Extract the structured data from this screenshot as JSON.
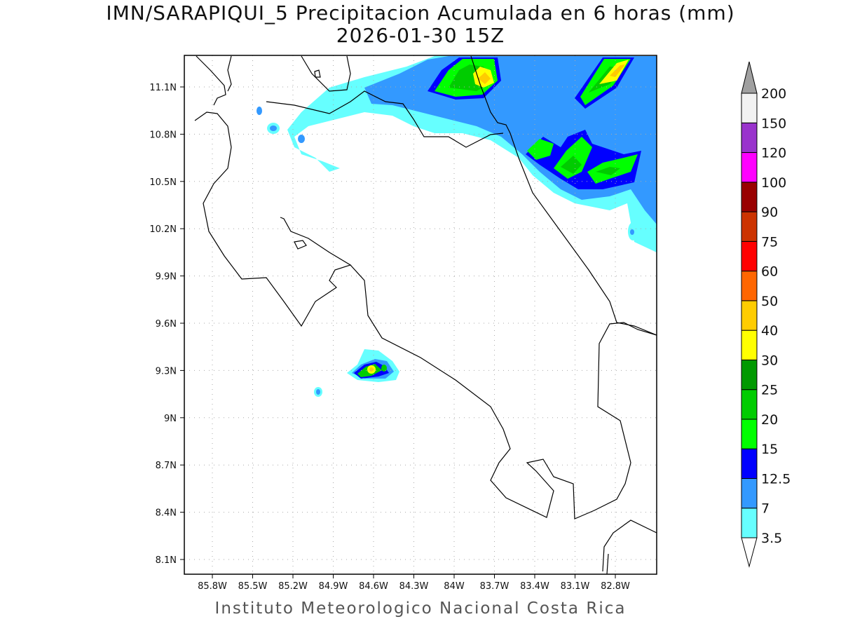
{
  "title": "IMN/SARAPIQUI_5 Precipitacion Acumulada en 6 horas (mm)",
  "subtitle": "2026-01-30 15Z",
  "footer": "Instituto Meteorologico Nacional Costa Rica",
  "map": {
    "lon_ticks": [
      "85.8W",
      "85.5W",
      "85.2W",
      "84.9W",
      "84.6W",
      "84.3W",
      "84W",
      "83.7W",
      "83.4W",
      "83.1W",
      "82.8W"
    ],
    "lat_ticks": [
      "11.1N",
      "10.8N",
      "10.5N",
      "10.2N",
      "9.9N",
      "9.6N",
      "9.3N",
      "9N",
      "8.7N",
      "8.4N",
      "8.1N"
    ]
  },
  "colorbar": {
    "labels": [
      "3.5",
      "7",
      "12.5",
      "15",
      "20",
      "25",
      "30",
      "40",
      "50",
      "60",
      "75",
      "90",
      "100",
      "120",
      "150",
      "200"
    ],
    "colors": [
      "#66ffff",
      "#3399ff",
      "#0000ff",
      "#00ff00",
      "#00cc00",
      "#009900",
      "#ffff00",
      "#ffcc00",
      "#ff6600",
      "#ff0000",
      "#cc3300",
      "#990000",
      "#ff00ff",
      "#9933cc",
      "#f2f2f2"
    ],
    "over_color": "#a0a0a0",
    "under_color": "#ffffff"
  }
}
